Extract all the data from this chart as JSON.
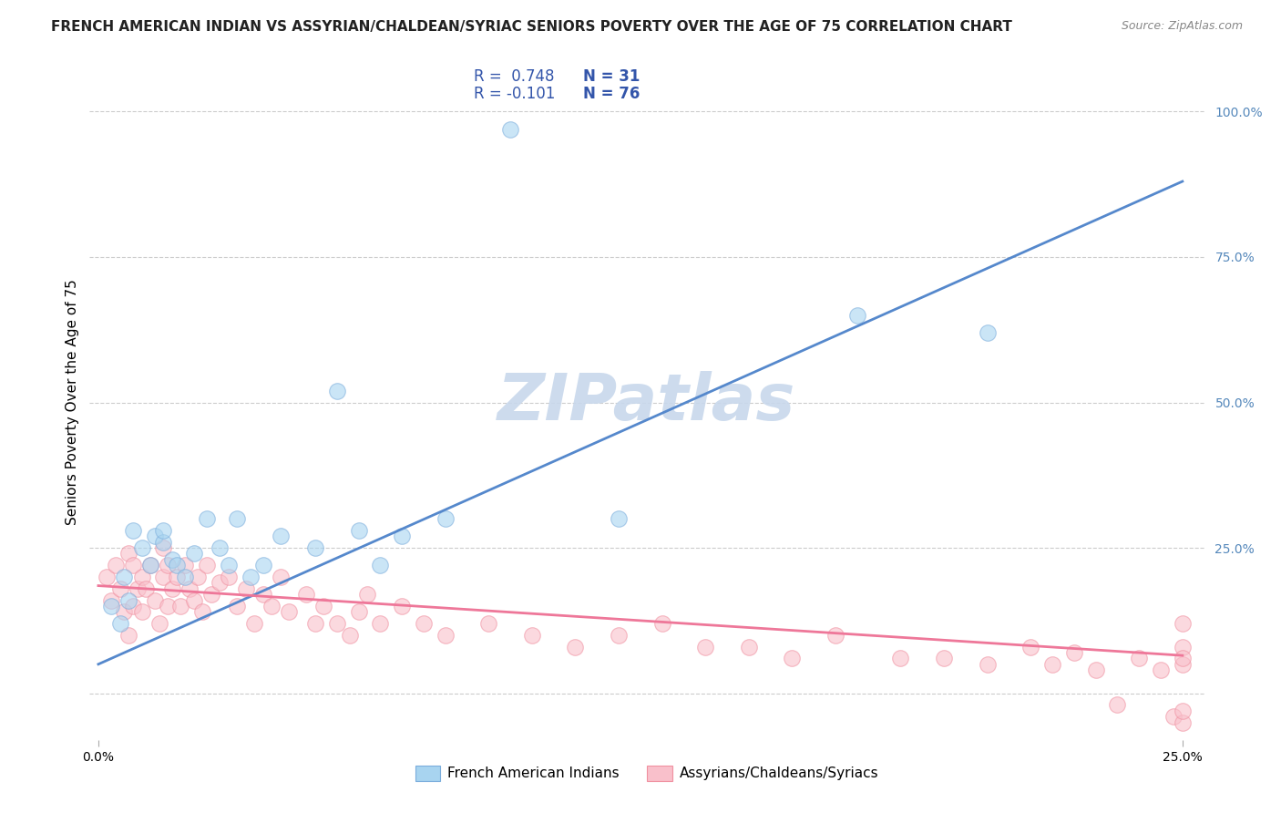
{
  "title": "FRENCH AMERICAN INDIAN VS ASSYRIAN/CHALDEAN/SYRIAC SENIORS POVERTY OVER THE AGE OF 75 CORRELATION CHART",
  "source": "Source: ZipAtlas.com",
  "ylabel": "Seniors Poverty Over the Age of 75",
  "xlim": [
    -0.002,
    0.255
  ],
  "ylim": [
    -0.08,
    1.08
  ],
  "yticks": [
    0.0,
    0.25,
    0.5,
    0.75,
    1.0
  ],
  "ytick_labels": [
    "",
    "25.0%",
    "50.0%",
    "75.0%",
    "100.0%"
  ],
  "xticks": [
    0.0,
    0.25
  ],
  "xtick_labels": [
    "0.0%",
    "25.0%"
  ],
  "legend_r1": "R =  0.748",
  "legend_n1": "N = 31",
  "legend_r2": "R = -0.101",
  "legend_n2": "N = 76",
  "color_blue": "#A8D4F0",
  "color_pink": "#F9C0CB",
  "edge_blue": "#7AADDC",
  "edge_pink": "#F090A0",
  "line_color_blue": "#5588CC",
  "line_color_pink": "#EE7799",
  "watermark": "ZIPatlas",
  "blue_scatter_x": [
    0.003,
    0.005,
    0.006,
    0.007,
    0.008,
    0.01,
    0.012,
    0.013,
    0.015,
    0.015,
    0.017,
    0.018,
    0.02,
    0.022,
    0.025,
    0.028,
    0.03,
    0.032,
    0.035,
    0.038,
    0.042,
    0.05,
    0.055,
    0.06,
    0.065,
    0.07,
    0.08,
    0.095,
    0.12,
    0.175,
    0.205
  ],
  "blue_scatter_y": [
    0.15,
    0.12,
    0.2,
    0.16,
    0.28,
    0.25,
    0.22,
    0.27,
    0.26,
    0.28,
    0.23,
    0.22,
    0.2,
    0.24,
    0.3,
    0.25,
    0.22,
    0.3,
    0.2,
    0.22,
    0.27,
    0.25,
    0.52,
    0.28,
    0.22,
    0.27,
    0.3,
    0.97,
    0.3,
    0.65,
    0.62
  ],
  "pink_scatter_x": [
    0.002,
    0.003,
    0.004,
    0.005,
    0.006,
    0.007,
    0.007,
    0.008,
    0.008,
    0.009,
    0.01,
    0.01,
    0.011,
    0.012,
    0.013,
    0.014,
    0.015,
    0.015,
    0.016,
    0.016,
    0.017,
    0.018,
    0.019,
    0.02,
    0.021,
    0.022,
    0.023,
    0.024,
    0.025,
    0.026,
    0.028,
    0.03,
    0.032,
    0.034,
    0.036,
    0.038,
    0.04,
    0.042,
    0.044,
    0.048,
    0.05,
    0.052,
    0.055,
    0.058,
    0.06,
    0.062,
    0.065,
    0.07,
    0.075,
    0.08,
    0.09,
    0.1,
    0.11,
    0.12,
    0.13,
    0.14,
    0.15,
    0.16,
    0.17,
    0.185,
    0.195,
    0.205,
    0.215,
    0.22,
    0.225,
    0.23,
    0.235,
    0.24,
    0.245,
    0.248,
    0.25,
    0.25,
    0.25,
    0.25,
    0.25,
    0.25
  ],
  "pink_scatter_y": [
    0.2,
    0.16,
    0.22,
    0.18,
    0.14,
    0.24,
    0.1,
    0.22,
    0.15,
    0.18,
    0.2,
    0.14,
    0.18,
    0.22,
    0.16,
    0.12,
    0.2,
    0.25,
    0.15,
    0.22,
    0.18,
    0.2,
    0.15,
    0.22,
    0.18,
    0.16,
    0.2,
    0.14,
    0.22,
    0.17,
    0.19,
    0.2,
    0.15,
    0.18,
    0.12,
    0.17,
    0.15,
    0.2,
    0.14,
    0.17,
    0.12,
    0.15,
    0.12,
    0.1,
    0.14,
    0.17,
    0.12,
    0.15,
    0.12,
    0.1,
    0.12,
    0.1,
    0.08,
    0.1,
    0.12,
    0.08,
    0.08,
    0.06,
    0.1,
    0.06,
    0.06,
    0.05,
    0.08,
    0.05,
    0.07,
    0.04,
    -0.02,
    0.06,
    0.04,
    -0.04,
    0.08,
    0.05,
    -0.05,
    -0.03,
    0.12,
    0.06
  ],
  "blue_line_x": [
    0.0,
    0.25
  ],
  "blue_line_y": [
    0.05,
    0.88
  ],
  "pink_line_x": [
    0.0,
    0.25
  ],
  "pink_line_y": [
    0.185,
    0.065
  ],
  "background_color": "#ffffff",
  "grid_color": "#cccccc",
  "title_fontsize": 11,
  "axis_label_fontsize": 11,
  "tick_fontsize": 10,
  "watermark_color": "#C8D8EC",
  "watermark_fontsize": 52,
  "scatter_size": 160,
  "scatter_alpha": 0.6
}
